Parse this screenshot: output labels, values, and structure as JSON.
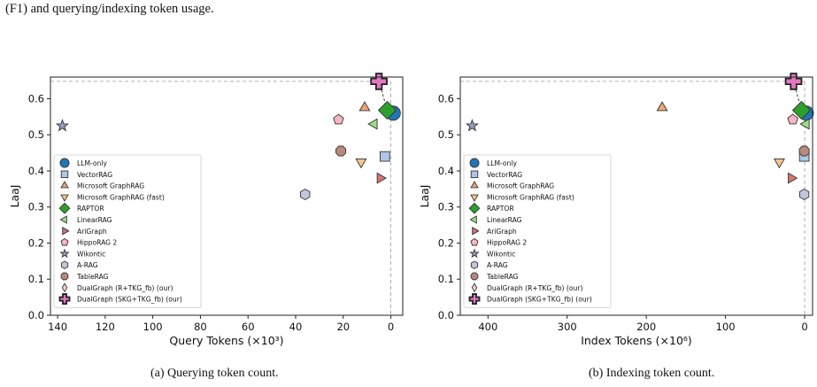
{
  "intro_text": "(F1) and querying/indexing token usage.",
  "colors": {
    "LLM-only": "#1f77b4",
    "VectorRAG": "#aec7e8",
    "Microsoft GraphRAG": "#e8a67a",
    "Microsoft GraphRAG (fast)": "#f5c38e",
    "RAPTOR": "#2ca02c",
    "LinearRAG": "#98df8a",
    "AriGraph": "#d67474",
    "HippoRAG 2": "#f7b6c2",
    "Wikontic": "#9a9ac8",
    "A-RAG": "#c5c5dd",
    "TableRAG": "#b98a7c",
    "DualGraph (R+TKG_fb) (our)": "#f6cfc0",
    "DualGraph (SKG+TKG_fb) (our)": "#e377c2"
  },
  "chart_data": [
    {
      "type": "scatter",
      "caption": "(a) Querying token count.",
      "xlabel": "Query Tokens (×10³)",
      "ylabel": "LaaJ",
      "xlim": [
        143,
        -5
      ],
      "ylim": [
        0.0,
        0.66
      ],
      "x_reversed": true,
      "xticks": [
        140,
        120,
        100,
        80,
        60,
        40,
        20,
        0
      ],
      "xtick_labels": [
        "140",
        "120",
        "100",
        "80",
        "60",
        "40",
        "20",
        "0"
      ],
      "yticks": [
        0.0,
        0.1,
        0.2,
        0.3,
        0.4,
        0.5,
        0.6
      ],
      "ytick_labels": [
        "0.0",
        "0.1",
        "0.2",
        "0.3",
        "0.4",
        "0.5",
        "0.6"
      ],
      "legend_position": "lower-left",
      "points": [
        {
          "name": "LLM-only",
          "x": -1.0,
          "y": 0.56
        },
        {
          "name": "VectorRAG",
          "x": 2.5,
          "y": 0.44
        },
        {
          "name": "Microsoft GraphRAG",
          "x": 11.0,
          "y": 0.575
        },
        {
          "name": "Microsoft GraphRAG (fast)",
          "x": 12.5,
          "y": 0.425
        },
        {
          "name": "RAPTOR",
          "x": 1.5,
          "y": 0.568
        },
        {
          "name": "LinearRAG",
          "x": 7.0,
          "y": 0.53
        },
        {
          "name": "AriGraph",
          "x": 4.5,
          "y": 0.38
        },
        {
          "name": "HippoRAG 2",
          "x": 22.0,
          "y": 0.542
        },
        {
          "name": "Wikontic",
          "x": 138.0,
          "y": 0.525
        },
        {
          "name": "A-RAG",
          "x": 36.0,
          "y": 0.335
        },
        {
          "name": "TableRAG",
          "x": 21.0,
          "y": 0.455
        },
        {
          "name": "DualGraph (R+TKG_fb) (our)",
          "x": 5.0,
          "y": 0.648
        },
        {
          "name": "DualGraph (SKG+TKG_fb) (our)",
          "x": 5.0,
          "y": 0.648
        }
      ],
      "guide_lines": {
        "x": 0.0,
        "y": 0.648
      }
    },
    {
      "type": "scatter",
      "caption": "(b) Indexing token count.",
      "xlabel": "Index Tokens (×10⁶)",
      "ylabel": "LaaJ",
      "xlim": [
        435,
        -10
      ],
      "ylim": [
        0.0,
        0.66
      ],
      "x_reversed": true,
      "xticks": [
        400,
        300,
        200,
        100,
        0
      ],
      "xtick_labels": [
        "400",
        "300",
        "200",
        "100",
        "0"
      ],
      "yticks": [
        0.0,
        0.1,
        0.2,
        0.3,
        0.4,
        0.5,
        0.6
      ],
      "ytick_labels": [
        "0.0",
        "0.1",
        "0.2",
        "0.3",
        "0.4",
        "0.5",
        "0.6"
      ],
      "legend_position": "lower-left",
      "points": [
        {
          "name": "LLM-only",
          "x": -2.0,
          "y": 0.56
        },
        {
          "name": "VectorRAG",
          "x": 0.5,
          "y": 0.44
        },
        {
          "name": "Microsoft GraphRAG",
          "x": 180.0,
          "y": 0.575
        },
        {
          "name": "Microsoft GraphRAG (fast)",
          "x": 32.0,
          "y": 0.425
        },
        {
          "name": "RAPTOR",
          "x": 4.0,
          "y": 0.568
        },
        {
          "name": "LinearRAG",
          "x": -2.0,
          "y": 0.53
        },
        {
          "name": "AriGraph",
          "x": 17.0,
          "y": 0.38
        },
        {
          "name": "HippoRAG 2",
          "x": 15.0,
          "y": 0.542
        },
        {
          "name": "Wikontic",
          "x": 420.0,
          "y": 0.525
        },
        {
          "name": "A-RAG",
          "x": 0.5,
          "y": 0.335
        },
        {
          "name": "TableRAG",
          "x": 0.5,
          "y": 0.455
        },
        {
          "name": "DualGraph (R+TKG_fb) (our)",
          "x": 14.0,
          "y": 0.648
        },
        {
          "name": "DualGraph (SKG+TKG_fb) (our)",
          "x": 14.0,
          "y": 0.648
        }
      ],
      "guide_lines": {
        "x": 0.0,
        "y": 0.648
      }
    }
  ]
}
